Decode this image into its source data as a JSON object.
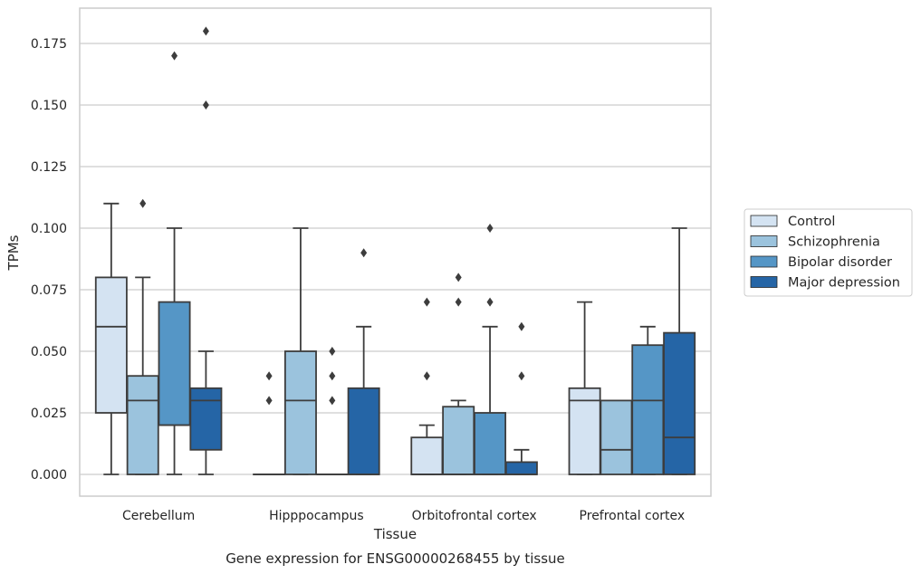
{
  "chart_data": {
    "type": "box",
    "title": "Gene expression for ENSG00000268455 by tissue",
    "xlabel": "Tissue",
    "ylabel": "TPMs",
    "ylim": [
      -0.009,
      0.189
    ],
    "yticks": [
      "0.000",
      "0.025",
      "0.050",
      "0.075",
      "0.100",
      "0.125",
      "0.150",
      "0.175"
    ],
    "grid": "horizontal",
    "legend_position": "right",
    "categories": [
      "Cerebellum",
      "Hipppocampus",
      "Orbitofrontal cortex",
      "Prefrontal cortex"
    ],
    "series": [
      {
        "name": "Control",
        "color": "#d4e3f2",
        "boxes": [
          {
            "whislo": 0.0,
            "q1": 0.025,
            "med": 0.06,
            "q3": 0.08,
            "whishi": 0.11,
            "fliers": []
          },
          {
            "whislo": 0.0,
            "q1": 0.0,
            "med": 0.0,
            "q3": 0.0,
            "whishi": 0.0,
            "fliers": [
              0.03,
              0.04
            ]
          },
          {
            "whislo": 0.0,
            "q1": 0.0,
            "med": 0.0,
            "q3": 0.015,
            "whishi": 0.02,
            "fliers": [
              0.04,
              0.07
            ]
          },
          {
            "whislo": 0.0,
            "q1": 0.0,
            "med": 0.03,
            "q3": 0.035,
            "whishi": 0.07,
            "fliers": []
          }
        ]
      },
      {
        "name": "Schizophrenia",
        "color": "#9bc3dd",
        "boxes": [
          {
            "whislo": 0.0,
            "q1": 0.0,
            "med": 0.03,
            "q3": 0.04,
            "whishi": 0.08,
            "fliers": [
              0.11
            ]
          },
          {
            "whislo": 0.0,
            "q1": 0.0,
            "med": 0.03,
            "q3": 0.05,
            "whishi": 0.1,
            "fliers": []
          },
          {
            "whislo": 0.0,
            "q1": 0.0,
            "med": 0.0,
            "q3": 0.0275,
            "whishi": 0.03,
            "fliers": [
              0.07,
              0.08
            ]
          },
          {
            "whislo": 0.0,
            "q1": 0.0,
            "med": 0.01,
            "q3": 0.03,
            "whishi": 0.03,
            "fliers": []
          }
        ]
      },
      {
        "name": "Bipolar disorder",
        "color": "#5596c6",
        "boxes": [
          {
            "whislo": 0.0,
            "q1": 0.02,
            "med": 0.02,
            "q3": 0.07,
            "whishi": 0.1,
            "fliers": [
              0.17
            ]
          },
          {
            "whislo": 0.0,
            "q1": 0.0,
            "med": 0.0,
            "q3": 0.0,
            "whishi": 0.0,
            "fliers": [
              0.03,
              0.04,
              0.05
            ]
          },
          {
            "whislo": 0.0,
            "q1": 0.0,
            "med": 0.0,
            "q3": 0.025,
            "whishi": 0.06,
            "fliers": [
              0.07,
              0.1
            ]
          },
          {
            "whislo": 0.0,
            "q1": 0.0,
            "med": 0.03,
            "q3": 0.0525,
            "whishi": 0.06,
            "fliers": []
          }
        ]
      },
      {
        "name": "Major depression",
        "color": "#2565a6",
        "boxes": [
          {
            "whislo": 0.0,
            "q1": 0.01,
            "med": 0.03,
            "q3": 0.035,
            "whishi": 0.05,
            "fliers": [
              0.15,
              0.18
            ]
          },
          {
            "whislo": 0.0,
            "q1": 0.0,
            "med": 0.0,
            "q3": 0.035,
            "whishi": 0.06,
            "fliers": [
              0.09
            ]
          },
          {
            "whislo": 0.0,
            "q1": 0.0,
            "med": 0.0,
            "q3": 0.005,
            "whishi": 0.01,
            "fliers": [
              0.04,
              0.06
            ]
          },
          {
            "whislo": 0.0,
            "q1": 0.0,
            "med": 0.015,
            "q3": 0.0575,
            "whishi": 0.1,
            "fliers": []
          }
        ]
      }
    ]
  }
}
